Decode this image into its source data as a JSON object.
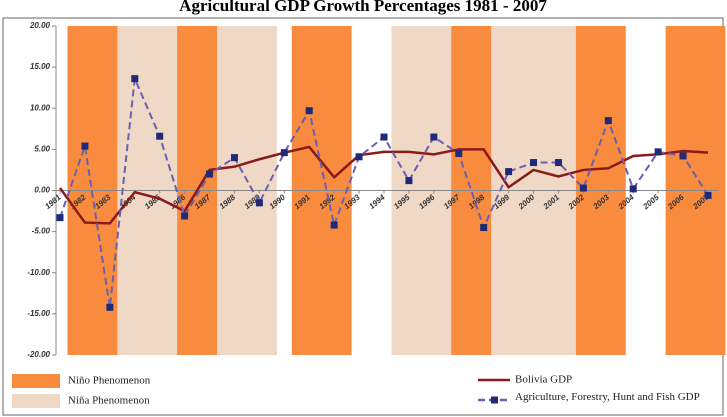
{
  "chart_data": {
    "type": "line",
    "title": "Agricultural GDP Growth Percentages 1981 - 2007",
    "x": [
      1981,
      1982,
      1983,
      1984,
      1985,
      1986,
      1987,
      1988,
      1989,
      1990,
      1991,
      1992,
      1993,
      1994,
      1995,
      1996,
      1997,
      1998,
      1999,
      2000,
      2001,
      2002,
      2003,
      2004,
      2005,
      2006,
      2007
    ],
    "xlim": [
      1981,
      2007
    ],
    "xticks": [
      1981,
      1982,
      1983,
      1984,
      1985,
      1986,
      1987,
      1988,
      1989,
      1990,
      1991,
      1992,
      1993,
      1994,
      1995,
      1996,
      1997,
      1998,
      1999,
      2000,
      2001,
      2002,
      2003,
      2004,
      2005,
      2006,
      2007
    ],
    "ylim": [
      -20,
      20
    ],
    "yticks": [
      {
        "value": -20,
        "label": "-20.00"
      },
      {
        "value": -15,
        "label": "-15.00"
      },
      {
        "value": -10,
        "label": "-10.00"
      },
      {
        "value": -5,
        "label": "-5.00"
      },
      {
        "value": 0,
        "label": "0.00"
      },
      {
        "value": 5,
        "label": "5.00"
      },
      {
        "value": 10,
        "label": "10.00"
      },
      {
        "value": 15,
        "label": "15.00"
      },
      {
        "value": 20,
        "label": "20.00"
      }
    ],
    "series": [
      {
        "name": "Bolivia GDP",
        "color": "#8b1a1a",
        "dashed": false,
        "markers": false,
        "values": [
          0.3,
          -3.9,
          -4.0,
          -0.2,
          -1.0,
          -2.5,
          2.5,
          2.9,
          3.8,
          4.6,
          5.3,
          1.6,
          4.3,
          4.7,
          4.7,
          4.4,
          5.0,
          5.0,
          0.4,
          2.5,
          1.7,
          2.5,
          2.7,
          4.2,
          4.4,
          4.8,
          4.6
        ]
      },
      {
        "name": "Agriculture, Forestry, Hunt and Fish GDP",
        "color": "#6a5fb0",
        "marker_color": "#1f2a7a",
        "dashed": true,
        "markers": true,
        "values": [
          -3.3,
          5.4,
          -14.2,
          13.6,
          6.6,
          -3.1,
          2.0,
          4.0,
          -1.5,
          4.6,
          9.7,
          -4.2,
          4.1,
          6.5,
          1.2,
          6.5,
          4.5,
          -4.5,
          2.3,
          3.4,
          3.4,
          0.3,
          8.5,
          0.2,
          4.7,
          4.2,
          -0.6
        ]
      }
    ],
    "bands": [
      {
        "name": "Niño Phenomenon",
        "color": "#f98b3e",
        "ranges": [
          [
            1982,
            1983
          ],
          [
            1986,
            1987
          ],
          [
            1991,
            1992
          ],
          [
            1997,
            1998
          ],
          [
            2002,
            2003
          ],
          [
            2006,
            2007
          ]
        ]
      },
      {
        "name": "Niña Phenomenon",
        "color": "#efd8c6",
        "ranges": [
          [
            1984,
            1985
          ],
          [
            1988,
            1989
          ],
          [
            1995,
            1996
          ],
          [
            1999,
            2001
          ]
        ]
      }
    ]
  }
}
